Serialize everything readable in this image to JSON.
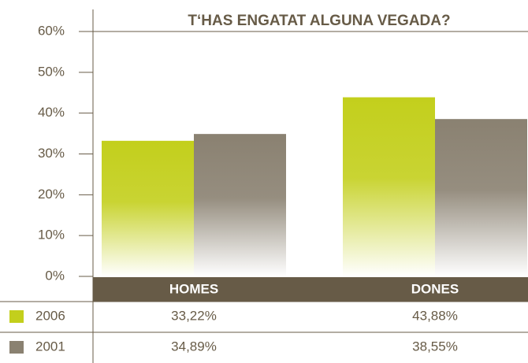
{
  "chart_data": {
    "type": "bar",
    "title": "T‘HAS ENGATAT ALGUNA VEGADA?",
    "categories": [
      "HOMES",
      "DONES"
    ],
    "series": [
      {
        "name": "2006",
        "color": "#c3cf1c",
        "values": [
          33.22,
          43.88
        ],
        "value_labels": [
          "33,22%",
          "43,88%"
        ]
      },
      {
        "name": "2001",
        "color": "#8a8171",
        "values": [
          34.89,
          38.55
        ],
        "value_labels": [
          "34,89%",
          "38,55%"
        ]
      }
    ],
    "ylim": [
      0,
      60
    ],
    "yticks": [
      {
        "value": 0,
        "label": "0%"
      },
      {
        "value": 10,
        "label": "10%"
      },
      {
        "value": 20,
        "label": "20%"
      },
      {
        "value": 30,
        "label": "30%"
      },
      {
        "value": 40,
        "label": "40%"
      },
      {
        "value": 50,
        "label": "50%"
      },
      {
        "value": 60,
        "label": "60%"
      }
    ]
  }
}
